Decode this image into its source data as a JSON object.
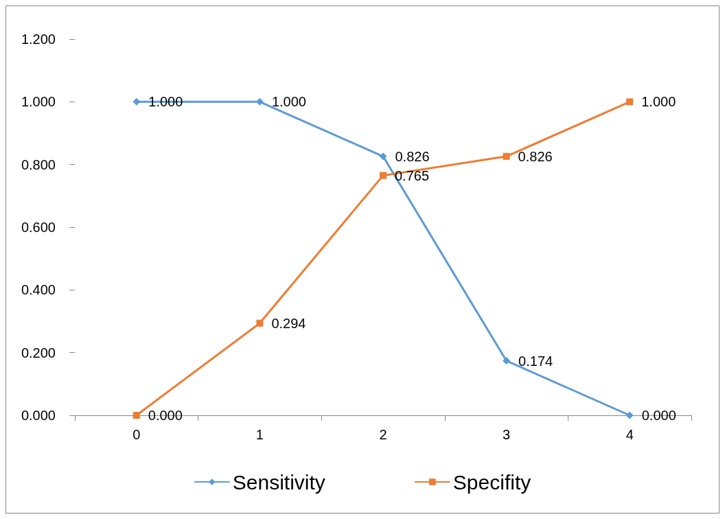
{
  "chart_data": {
    "type": "line",
    "categories": [
      "0",
      "1",
      "2",
      "3",
      "4"
    ],
    "series": [
      {
        "name": "Sensitivity",
        "color": "#5b9bd5",
        "marker": "diamond",
        "values": [
          1.0,
          1.0,
          0.826,
          0.174,
          0.0
        ],
        "value_labels": [
          "1.000",
          "1.000",
          "0.826",
          "0.174",
          "0.000"
        ]
      },
      {
        "name": "Specifity",
        "color": "#ed7d31",
        "marker": "square",
        "values": [
          0.0,
          0.294,
          0.765,
          0.826,
          1.0
        ],
        "value_labels": [
          "0.000",
          "0.294",
          "0.765",
          "0.826",
          "1.000"
        ]
      }
    ],
    "ylim": [
      0,
      1.2
    ],
    "yticks": [
      {
        "value": 0,
        "label": "0.000"
      },
      {
        "value": 0.2,
        "label": "0.200"
      },
      {
        "value": 0.4,
        "label": "0.400"
      },
      {
        "value": 0.6,
        "label": "0.600"
      },
      {
        "value": 0.8,
        "label": "0.800"
      },
      {
        "value": 1.0,
        "label": "1.000"
      },
      {
        "value": 1.2,
        "label": "1.200"
      }
    ],
    "grid": false,
    "legend": "bottom"
  }
}
